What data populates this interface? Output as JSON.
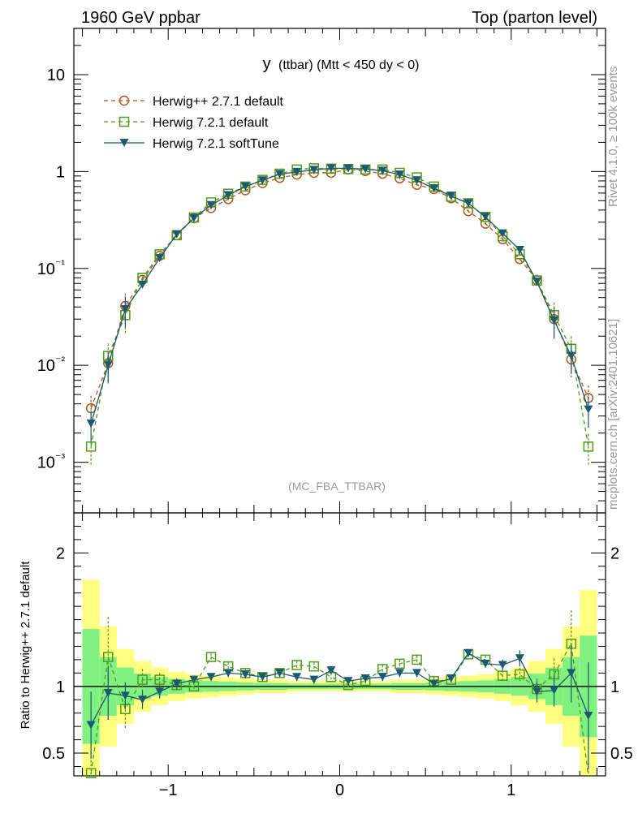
{
  "header": {
    "left": "1960 GeV ppbar",
    "right": "Top (parton level)"
  },
  "side_labels": {
    "rivet": "Rivet 4.1.0, ≥ 100k events",
    "mcplots": "mcplots.cern.ch [arXiv:2401.10621]"
  },
  "colors": {
    "herwigpp": "#b5561f",
    "herwig721": "#4f9c1a",
    "softtune": "#1c5a70",
    "band_yellow": "#ffff80",
    "band_green": "#80f080"
  },
  "chart_data": [
    {
      "type": "line",
      "title": "y (ttbar) (Mtt < 450 dy < 0)",
      "title_main": "y",
      "title_sub": "(ttbar) (Mtt < 450 dy < 0)",
      "watermark": "(MC_FBA_TTBAR)",
      "yscale": "log",
      "xlim": [
        -1.55,
        1.55
      ],
      "ylim": [
        0.0003,
        30
      ],
      "ytick_labels": [
        "10",
        "1",
        "10⁻¹",
        "10⁻²",
        "10⁻³"
      ],
      "yticks": [
        10,
        1,
        0.1,
        0.01,
        0.001
      ],
      "legend_position": "top-left",
      "x": [
        -1.45,
        -1.35,
        -1.25,
        -1.15,
        -1.05,
        -0.95,
        -0.85,
        -0.75,
        -0.65,
        -0.55,
        -0.45,
        -0.35,
        -0.25,
        -0.15,
        -0.05,
        0.05,
        0.15,
        0.25,
        0.35,
        0.45,
        0.55,
        0.65,
        0.75,
        0.85,
        0.95,
        1.05,
        1.15,
        1.25,
        1.35,
        1.45
      ],
      "series": [
        {
          "name": "Herwig++ 2.7.1 default",
          "marker": "circle",
          "style": "dashed",
          "values": [
            0.0036,
            0.0105,
            0.041,
            0.076,
            0.135,
            0.22,
            0.33,
            0.42,
            0.52,
            0.64,
            0.76,
            0.86,
            0.93,
            0.97,
            0.97,
            1.05,
            1.01,
            0.95,
            0.85,
            0.73,
            0.66,
            0.53,
            0.39,
            0.29,
            0.2,
            0.125,
            0.076,
            0.03,
            0.0115,
            0.0046
          ]
        },
        {
          "name": "Herwig 7.2.1 default",
          "marker": "square",
          "style": "dashed",
          "values": [
            0.00145,
            0.0125,
            0.033,
            0.08,
            0.14,
            0.22,
            0.335,
            0.48,
            0.59,
            0.7,
            0.82,
            0.95,
            1.05,
            1.08,
            1.07,
            1.06,
            1.05,
            1.05,
            0.97,
            0.87,
            0.7,
            0.55,
            0.47,
            0.34,
            0.215,
            0.14,
            0.075,
            0.033,
            0.0148,
            0.00145
          ]
        },
        {
          "name": "Herwig 7.2.1 softTune",
          "marker": "triangle",
          "style": "solid",
          "values": [
            0.0025,
            0.01,
            0.038,
            0.068,
            0.128,
            0.225,
            0.33,
            0.45,
            0.57,
            0.7,
            0.81,
            0.94,
            0.99,
            1.04,
            1.08,
            1.08,
            1.06,
            1.02,
            0.93,
            0.81,
            0.67,
            0.56,
            0.47,
            0.34,
            0.23,
            0.155,
            0.073,
            0.029,
            0.0125,
            0.0035
          ]
        }
      ]
    },
    {
      "type": "line",
      "ylabel": "Ratio to Herwig++ 2.7.1 default",
      "ylim": [
        0.33,
        2.3
      ],
      "yticks": [
        0.5,
        1,
        2
      ],
      "ytick_labels": [
        "0.5",
        "1",
        "2"
      ],
      "xticks": [
        -1,
        0,
        1
      ],
      "xtick_labels": [
        "−1",
        "0",
        "1"
      ],
      "x": [
        -1.45,
        -1.35,
        -1.25,
        -1.15,
        -1.05,
        -0.95,
        -0.85,
        -0.75,
        -0.65,
        -0.55,
        -0.45,
        -0.35,
        -0.25,
        -0.15,
        -0.05,
        0.05,
        0.15,
        0.25,
        0.35,
        0.45,
        0.55,
        0.65,
        0.75,
        0.85,
        0.95,
        1.05,
        1.15,
        1.25,
        1.35,
        1.45
      ],
      "band_yellow": [
        0.8,
        0.45,
        0.28,
        0.19,
        0.14,
        0.11,
        0.09,
        0.08,
        0.07,
        0.06,
        0.05,
        0.05,
        0.04,
        0.04,
        0.04,
        0.04,
        0.04,
        0.04,
        0.05,
        0.05,
        0.06,
        0.07,
        0.08,
        0.09,
        0.11,
        0.14,
        0.19,
        0.28,
        0.45,
        0.72
      ],
      "band_green": [
        0.43,
        0.22,
        0.14,
        0.095,
        0.07,
        0.055,
        0.045,
        0.04,
        0.035,
        0.03,
        0.025,
        0.025,
        0.02,
        0.02,
        0.02,
        0.02,
        0.02,
        0.02,
        0.025,
        0.025,
        0.03,
        0.035,
        0.04,
        0.045,
        0.055,
        0.07,
        0.095,
        0.14,
        0.22,
        0.38
      ],
      "series": [
        {
          "name": "Herwig 7.2.1 default",
          "marker": "square",
          "style": "dashed",
          "values": [
            0.35,
            1.22,
            0.83,
            1.05,
            1.05,
            1.01,
            1.0,
            1.22,
            1.15,
            1.1,
            1.07,
            1.1,
            1.16,
            1.15,
            1.07,
            1.01,
            1.04,
            1.13,
            1.17,
            1.2,
            1.04,
            1.05,
            1.24,
            1.2,
            1.08,
            1.09,
            0.98,
            1.09,
            1.32,
            0.32
          ],
          "errors": [
            0.25,
            0.3,
            0.15,
            0.08,
            0.05,
            0.04,
            0.03,
            0.03,
            0.03,
            0.03,
            0.03,
            0.03,
            0.03,
            0.03,
            0.03,
            0.03,
            0.03,
            0.03,
            0.03,
            0.03,
            0.03,
            0.03,
            0.03,
            0.03,
            0.04,
            0.05,
            0.08,
            0.12,
            0.25,
            0.35
          ]
        },
        {
          "name": "Herwig 7.2.1 softTune",
          "marker": "triangle",
          "style": "solid",
          "values": [
            0.71,
            0.95,
            0.93,
            0.9,
            0.96,
            1.02,
            1.05,
            1.07,
            1.1,
            1.09,
            1.07,
            1.1,
            1.07,
            1.05,
            1.12,
            1.04,
            1.06,
            1.07,
            1.1,
            1.1,
            1.02,
            1.06,
            1.25,
            1.17,
            1.16,
            1.21,
            0.96,
            0.97,
            1.1,
            0.78
          ],
          "errors": [
            0.25,
            0.2,
            0.1,
            0.07,
            0.05,
            0.04,
            0.03,
            0.03,
            0.03,
            0.03,
            0.03,
            0.03,
            0.03,
            0.03,
            0.03,
            0.03,
            0.03,
            0.03,
            0.03,
            0.03,
            0.03,
            0.03,
            0.03,
            0.03,
            0.04,
            0.06,
            0.08,
            0.12,
            0.22,
            0.4
          ]
        }
      ]
    }
  ]
}
